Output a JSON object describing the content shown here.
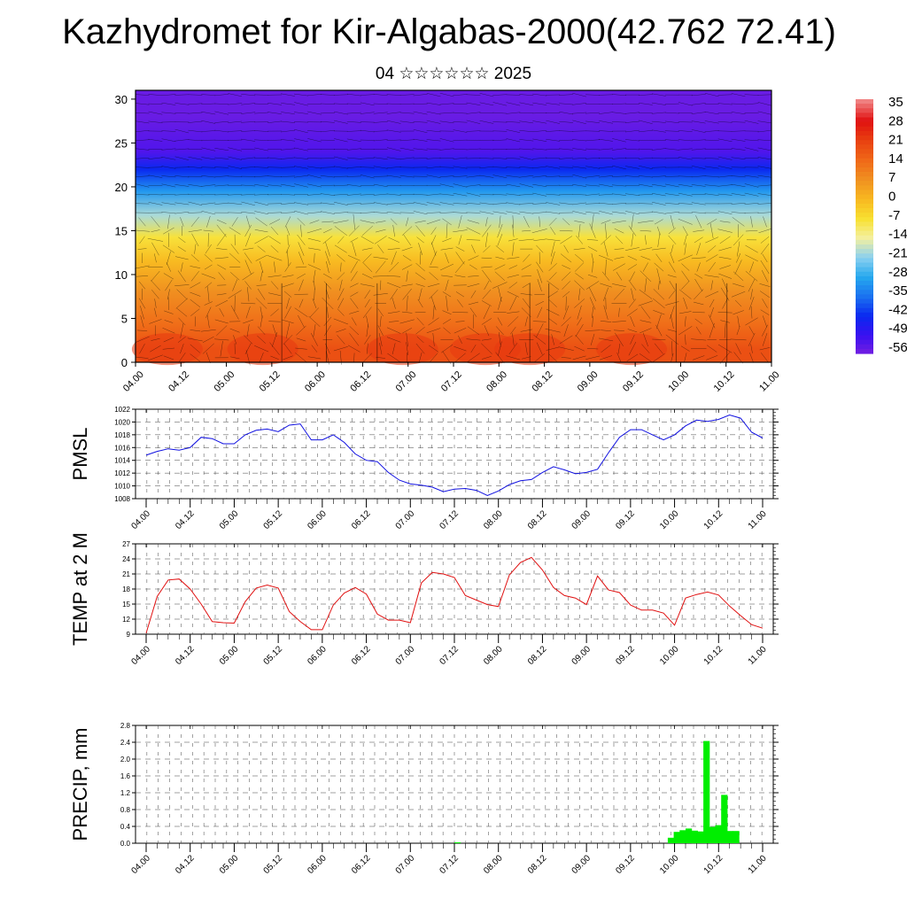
{
  "page": {
    "title": "Kazhydromet for Kir-Algabas-2000(42.762 72.41)",
    "subtitle": "04 ☆☆☆☆☆☆ 2025"
  },
  "chart_data": [
    {
      "type": "heatmap",
      "name": "temperature-cross-section-with-wind",
      "time_labels": [
        "04.00",
        "04.12",
        "05.00",
        "05.12",
        "06.00",
        "06.12",
        "07.00",
        "07.12",
        "08.00",
        "08.12",
        "09.00",
        "09.12",
        "10.00",
        "10.12",
        "11.00"
      ],
      "yticks": [
        0,
        5,
        10,
        15,
        20,
        25,
        30
      ],
      "ylim": [
        0,
        31
      ],
      "colorbar": {
        "labels": [
          "35",
          "28",
          "21",
          "14",
          "7",
          "0",
          "-7",
          "-14",
          "-21",
          "-28",
          "-35",
          "-42",
          "-49",
          "-56"
        ],
        "min": -60,
        "max": 38,
        "colors": [
          "#7a20e0",
          "#3a10f0",
          "#0a28f0",
          "#1a70f0",
          "#25a8ee",
          "#8ad0f0",
          "#f4f0a0",
          "#f8e030",
          "#f8b820",
          "#f09020",
          "#f06818",
          "#e84010",
          "#e01010",
          "#f08080"
        ]
      },
      "bands": [
        {
          "from": 0,
          "to": 3,
          "value": 20
        },
        {
          "from": 3,
          "to": 6,
          "value": 14
        },
        {
          "from": 6,
          "to": 10,
          "value": 8
        },
        {
          "from": 10,
          "to": 13,
          "value": 0
        },
        {
          "from": 13,
          "to": 15.5,
          "value": -8
        },
        {
          "from": 15.5,
          "to": 18,
          "value": -20
        },
        {
          "from": 18,
          "to": 21,
          "value": -32
        },
        {
          "from": 21,
          "to": 23,
          "value": -45
        },
        {
          "from": 23,
          "to": 25,
          "value": -55
        },
        {
          "from": 25,
          "to": 31,
          "value": -58
        }
      ]
    },
    {
      "type": "line",
      "name": "pmsl",
      "ylabel": "PMSL",
      "yticks": [
        1008,
        1010,
        1012,
        1014,
        1016,
        1018,
        1020,
        1022
      ],
      "ylim": [
        1008,
        1022
      ],
      "time_labels": [
        "04.00",
        "04.12",
        "05.00",
        "05.12",
        "06.00",
        "06.12",
        "07.00",
        "07.12",
        "08.00",
        "08.12",
        "09.00",
        "09.12",
        "10.00",
        "10.12",
        "11.00"
      ],
      "color": "#1010e0",
      "values": [
        1014.8,
        1015.4,
        1015.8,
        1015.6,
        1016.0,
        1017.6,
        1017.4,
        1016.6,
        1016.6,
        1018.0,
        1018.7,
        1018.9,
        1018.5,
        1019.5,
        1019.7,
        1017.2,
        1017.2,
        1018.0,
        1016.8,
        1015.0,
        1014.0,
        1013.8,
        1012.1,
        1010.9,
        1010.3,
        1010.1,
        1009.8,
        1009.1,
        1009.5,
        1009.6,
        1009.3,
        1008.5,
        1009.2,
        1010.2,
        1010.8,
        1011.0,
        1012.1,
        1013.0,
        1012.5,
        1011.9,
        1012.1,
        1012.6,
        1015.2,
        1017.6,
        1018.8,
        1018.8,
        1018.0,
        1017.2,
        1018.0,
        1019.4,
        1020.3,
        1020.1,
        1020.4,
        1021.1,
        1020.6,
        1018.4,
        1017.5
      ]
    },
    {
      "type": "line",
      "name": "temp-2m",
      "ylabel": "TEMP at 2 M",
      "yticks": [
        9,
        12,
        15,
        18,
        21,
        24,
        27
      ],
      "ylim": [
        9,
        27
      ],
      "time_labels": [
        "04.00",
        "04.12",
        "05.00",
        "05.12",
        "06.00",
        "06.12",
        "07.00",
        "07.12",
        "08.00",
        "08.12",
        "09.00",
        "09.12",
        "10.00",
        "10.12",
        "11.00"
      ],
      "color": "#e01010",
      "values": [
        9.2,
        16.5,
        19.8,
        20.0,
        18.0,
        15.0,
        11.5,
        11.3,
        11.2,
        15.5,
        18.2,
        18.8,
        18.2,
        13.5,
        11.5,
        9.9,
        9.9,
        14.8,
        17.2,
        18.3,
        17.0,
        13.0,
        11.8,
        11.8,
        11.3,
        19.2,
        21.3,
        21.0,
        20.3,
        16.7,
        15.8,
        14.9,
        14.5,
        20.8,
        23.3,
        24.3,
        21.8,
        18.3,
        16.7,
        16.2,
        14.9,
        20.6,
        17.8,
        17.3,
        14.8,
        13.8,
        13.8,
        13.2,
        10.8,
        16.2,
        16.9,
        17.4,
        16.8,
        14.6,
        12.7,
        10.9,
        10.2
      ]
    },
    {
      "type": "bar",
      "name": "precip",
      "ylabel": "PRECIP, mm",
      "yticks": [
        "0.0",
        "0.4",
        "0.8",
        "1.2",
        "1.6",
        "2.0",
        "2.4",
        "2.8"
      ],
      "ylim": [
        0,
        2.8
      ],
      "time_labels": [
        "04.00",
        "04.12",
        "05.00",
        "05.12",
        "06.00",
        "06.12",
        "07.00",
        "07.12",
        "08.00",
        "08.12",
        "09.00",
        "09.12",
        "10.00",
        "10.12",
        "11.00"
      ],
      "color": "#00ee00",
      "values": [
        0,
        0,
        0,
        0,
        0,
        0,
        0,
        0,
        0,
        0,
        0,
        0,
        0,
        0,
        0,
        0,
        0,
        0,
        0,
        0,
        0,
        0,
        0,
        0,
        0,
        0,
        0,
        0,
        0,
        0,
        0,
        0,
        0,
        0,
        0,
        0,
        0,
        0,
        0,
        0,
        0,
        0,
        0,
        0,
        0,
        0,
        0,
        0,
        0,
        0,
        0,
        0,
        0.02,
        0,
        0,
        0,
        0,
        0,
        0,
        0,
        0,
        0,
        0,
        0,
        0,
        0,
        0,
        0,
        0,
        0,
        0,
        0,
        0,
        0,
        0,
        0,
        0,
        0,
        0,
        0,
        0,
        0,
        0,
        0,
        0,
        0,
        0,
        0,
        0.13,
        0.27,
        0.31,
        0.35,
        0.3,
        0.28,
        2.43,
        0.39,
        0.43,
        1.15,
        0.29,
        0.29,
        0,
        0,
        0,
        0
      ]
    }
  ]
}
